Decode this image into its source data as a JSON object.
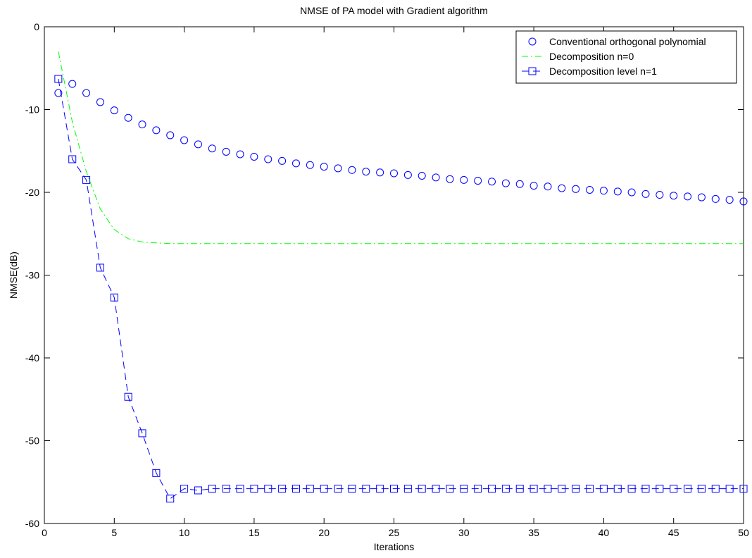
{
  "chart_data": {
    "type": "line",
    "title": "NMSE of PA model with Gradient algorithm",
    "xlabel": "Iterations",
    "ylabel": "NMSE(dB)",
    "xlim": [
      0,
      50
    ],
    "ylim": [
      -60,
      0
    ],
    "xticks": [
      0,
      5,
      10,
      15,
      20,
      25,
      30,
      35,
      40,
      45,
      50
    ],
    "yticks": [
      0,
      -10,
      -20,
      -30,
      -40,
      -50,
      -60
    ],
    "grid": false,
    "legend_position": "top-right",
    "series": [
      {
        "name": "Conventional orthogonal polynomial",
        "color": "#0000ff",
        "line": "none",
        "marker": "circle",
        "x": [
          1,
          2,
          3,
          4,
          5,
          6,
          7,
          8,
          9,
          10,
          11,
          12,
          13,
          14,
          15,
          16,
          17,
          18,
          19,
          20,
          21,
          22,
          23,
          24,
          25,
          26,
          27,
          28,
          29,
          30,
          31,
          32,
          33,
          34,
          35,
          36,
          37,
          38,
          39,
          40,
          41,
          42,
          43,
          44,
          45,
          46,
          47,
          48,
          49,
          50
        ],
        "y": [
          -8.0,
          -6.9,
          -8.0,
          -9.1,
          -10.1,
          -11.0,
          -11.8,
          -12.5,
          -13.1,
          -13.7,
          -14.2,
          -14.7,
          -15.1,
          -15.4,
          -15.7,
          -16.0,
          -16.2,
          -16.5,
          -16.7,
          -16.9,
          -17.1,
          -17.3,
          -17.5,
          -17.6,
          -17.7,
          -17.9,
          -18.0,
          -18.2,
          -18.4,
          -18.5,
          -18.6,
          -18.7,
          -18.9,
          -19.0,
          -19.2,
          -19.3,
          -19.5,
          -19.6,
          -19.7,
          -19.8,
          -19.9,
          -20.0,
          -20.2,
          -20.3,
          -20.4,
          -20.5,
          -20.6,
          -20.8,
          -20.9,
          -21.1
        ]
      },
      {
        "name": "Decomposition n=0",
        "color": "#00ff00",
        "line": "dashdot",
        "marker": "none",
        "x": [
          1,
          2,
          3,
          4,
          5,
          6,
          7,
          8,
          9,
          10,
          12,
          15,
          20,
          25,
          30,
          35,
          40,
          45,
          50
        ],
        "y": [
          -3.0,
          -11.5,
          -17.5,
          -22.0,
          -24.5,
          -25.6,
          -26.0,
          -26.1,
          -26.2,
          -26.2,
          -26.2,
          -26.2,
          -26.2,
          -26.2,
          -26.2,
          -26.2,
          -26.2,
          -26.2,
          -26.2
        ]
      },
      {
        "name": "Decomposition level n=1",
        "color": "#0000ff",
        "line": "dashed",
        "marker": "square",
        "x": [
          1,
          2,
          3,
          4,
          5,
          6,
          7,
          8,
          9,
          10,
          11,
          12,
          13,
          14,
          15,
          16,
          17,
          18,
          19,
          20,
          21,
          22,
          23,
          24,
          25,
          26,
          27,
          28,
          29,
          30,
          31,
          32,
          33,
          34,
          35,
          36,
          37,
          38,
          39,
          40,
          41,
          42,
          43,
          44,
          45,
          46,
          47,
          48,
          49,
          50
        ],
        "y": [
          -6.3,
          -16.0,
          -18.5,
          -29.1,
          -32.7,
          -44.7,
          -49.1,
          -53.9,
          -57.0,
          -55.8,
          -56.0,
          -55.8,
          -55.8,
          -55.8,
          -55.8,
          -55.8,
          -55.8,
          -55.8,
          -55.8,
          -55.8,
          -55.8,
          -55.8,
          -55.8,
          -55.8,
          -55.8,
          -55.8,
          -55.8,
          -55.8,
          -55.8,
          -55.8,
          -55.8,
          -55.8,
          -55.8,
          -55.8,
          -55.8,
          -55.8,
          -55.8,
          -55.8,
          -55.8,
          -55.8,
          -55.8,
          -55.8,
          -55.8,
          -55.8,
          -55.8,
          -55.8,
          -55.8,
          -55.8,
          -55.8,
          -55.8
        ]
      }
    ]
  }
}
